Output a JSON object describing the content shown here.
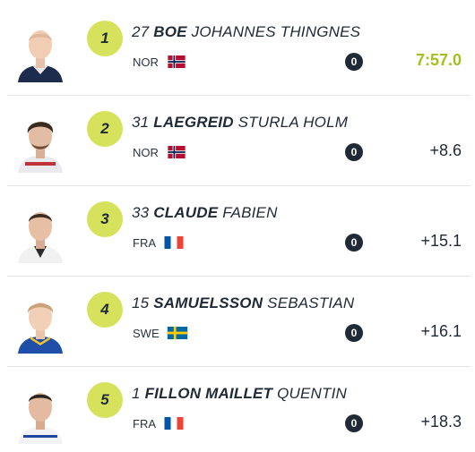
{
  "colors": {
    "rank_badge": "#d6e25b",
    "winner_time": "#a6bf1e",
    "penalty_badge": "#1f2a36",
    "text": "#1f2a36",
    "divider": "#e3e5e8"
  },
  "results": [
    {
      "rank": "1",
      "bib": "27",
      "last_name": "BOE",
      "first_name": "JOHANNES THINGNES",
      "country": "NOR",
      "flag": "norway-flag",
      "penalties": "0",
      "time": "7:57.0",
      "winner": true
    },
    {
      "rank": "2",
      "bib": "31",
      "last_name": "LAEGREID",
      "first_name": "STURLA HOLM",
      "country": "NOR",
      "flag": "norway-flag",
      "penalties": "0",
      "time": "+8.6",
      "winner": false
    },
    {
      "rank": "3",
      "bib": "33",
      "last_name": "CLAUDE",
      "first_name": "FABIEN",
      "country": "FRA",
      "flag": "france-flag",
      "penalties": "0",
      "time": "+15.1",
      "winner": false
    },
    {
      "rank": "4",
      "bib": "15",
      "last_name": "SAMUELSSON",
      "first_name": "SEBASTIAN",
      "country": "SWE",
      "flag": "sweden-flag",
      "penalties": "0",
      "time": "+16.1",
      "winner": false
    },
    {
      "rank": "5",
      "bib": "1",
      "last_name": "FILLON MAILLET",
      "first_name": "QUENTIN",
      "country": "FRA",
      "flag": "france-flag",
      "penalties": "0",
      "time": "+18.3",
      "winner": false
    }
  ]
}
